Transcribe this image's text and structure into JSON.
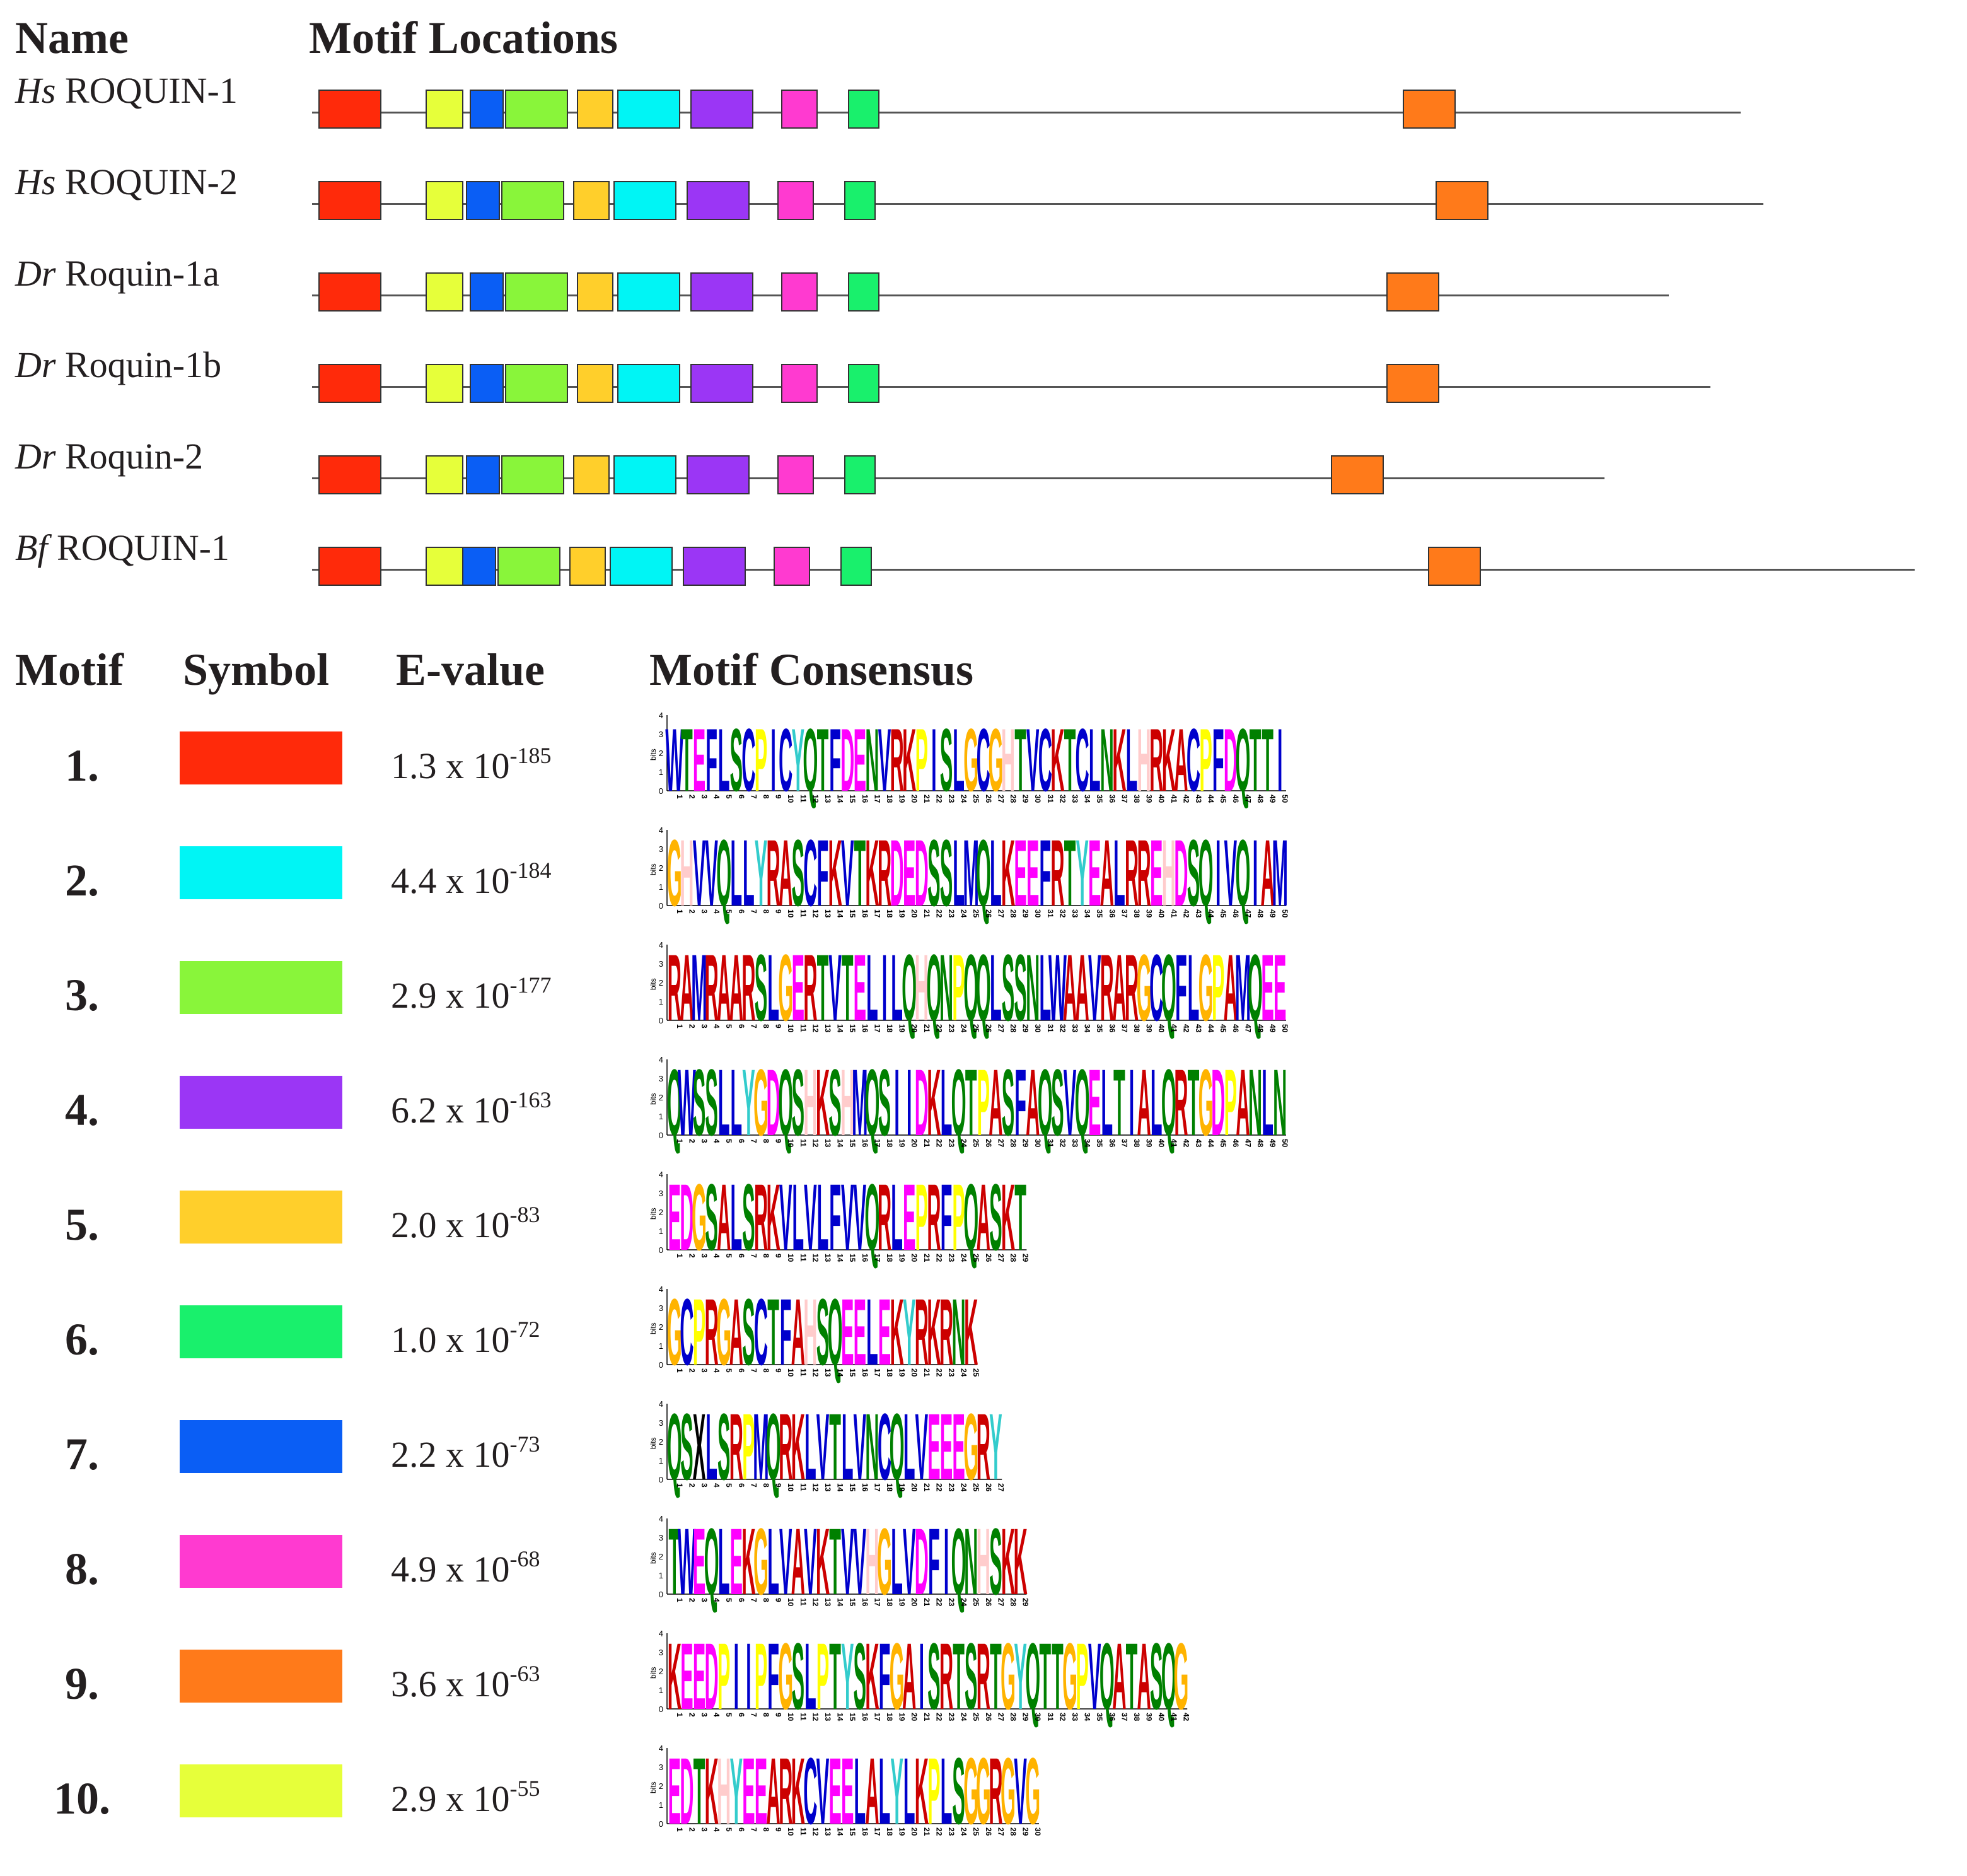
{
  "headers": {
    "name": "Name",
    "motif_locations": "Motif Locations",
    "motif": "Motif",
    "symbol": "Symbol",
    "evalue": "E-value",
    "consensus": "Motif Consensus"
  },
  "proteins": [
    {
      "species": "Hs",
      "gene": "ROQUIN-1",
      "length": 1133,
      "motifs": [
        [
          1,
          0
        ],
        [
          10,
          85
        ],
        [
          7,
          120
        ],
        [
          3,
          148
        ],
        [
          5,
          205
        ],
        [
          2,
          237
        ],
        [
          4,
          295
        ],
        [
          8,
          367
        ],
        [
          6,
          420
        ],
        [
          9,
          860
        ]
      ]
    },
    {
      "species": "Hs",
      "gene": "ROQUIN-2",
      "length": 1151,
      "motifs": [
        [
          1,
          0
        ],
        [
          10,
          85
        ],
        [
          7,
          117
        ],
        [
          3,
          145
        ],
        [
          5,
          202
        ],
        [
          2,
          234
        ],
        [
          4,
          292
        ],
        [
          8,
          364
        ],
        [
          6,
          417
        ],
        [
          9,
          886
        ]
      ]
    },
    {
      "species": "Dr",
      "gene": "Roquin-1a",
      "length": 1076,
      "motifs": [
        [
          1,
          0
        ],
        [
          10,
          85
        ],
        [
          7,
          120
        ],
        [
          3,
          148
        ],
        [
          5,
          205
        ],
        [
          2,
          237
        ],
        [
          4,
          295
        ],
        [
          8,
          367
        ],
        [
          6,
          420
        ],
        [
          9,
          847
        ]
      ]
    },
    {
      "species": "Dr",
      "gene": "Roquin-1b",
      "length": 1109,
      "motifs": [
        [
          1,
          0
        ],
        [
          10,
          85
        ],
        [
          7,
          120
        ],
        [
          3,
          148
        ],
        [
          5,
          205
        ],
        [
          2,
          237
        ],
        [
          4,
          295
        ],
        [
          8,
          367
        ],
        [
          6,
          420
        ],
        [
          9,
          847
        ]
      ]
    },
    {
      "species": "Dr",
      "gene": "Roquin-2",
      "length": 1025,
      "motifs": [
        [
          1,
          0
        ],
        [
          10,
          85
        ],
        [
          7,
          117
        ],
        [
          3,
          145
        ],
        [
          5,
          202
        ],
        [
          2,
          234
        ],
        [
          4,
          292
        ],
        [
          8,
          364
        ],
        [
          6,
          417
        ],
        [
          9,
          803
        ]
      ]
    },
    {
      "species": "Bf",
      "gene": "ROQUIN-1",
      "length": 1271,
      "motifs": [
        [
          1,
          0
        ],
        [
          10,
          85
        ],
        [
          7,
          114
        ],
        [
          3,
          142
        ],
        [
          5,
          199
        ],
        [
          2,
          231
        ],
        [
          4,
          289
        ],
        [
          8,
          361
        ],
        [
          6,
          414
        ],
        [
          9,
          880
        ]
      ]
    }
  ],
  "motifs": [
    {
      "label": "1.",
      "color": "#ff2a0a",
      "evalue_base": "1.3 x 10",
      "evalue_exp": "-185",
      "consensus": "WTEFLSCPICYQTFDENVRKPISLGCGHTVCKTCLNKLHRKACPFDQTTI",
      "height": 3.4
    },
    {
      "label": "2.",
      "color": "#00f5f5",
      "evalue_base": "4.4 x 10",
      "evalue_exp": "-184",
      "consensus": "GHVVQLLYRASCFKVTKRDEDSSLMQLKEEFRTYEALRREHDSQIVQIAM",
      "height": 3.6
    },
    {
      "label": "3.",
      "color": "#89f53a",
      "evalue_base": "2.9 x 10",
      "evalue_exp": "-177",
      "consensus": "RAMRAARSLGERTVTELILQHQNPQQLSSNLWAAVRARGCQFLGPAMQEE",
      "height": 3.6
    },
    {
      "label": "4.",
      "color": "#9b36f5",
      "evalue_base": "6.2 x 10",
      "evalue_exp": "-163",
      "consensus": "QWSSLLYGDQSHKSHMQSIIDKLQTPASFAQSVQELTIALQRTGDPANLN",
      "height": 3.6
    },
    {
      "label": "5.",
      "color": "#ffcf2b",
      "evalue_base": "2.0 x 10",
      "evalue_exp": "-83",
      "consensus": "EDGSALSRKVLVLFVVQRLEPRFPQASKT",
      "height": 3.6
    },
    {
      "label": "6.",
      "color": "#19f06c",
      "evalue_base": "1.0 x 10",
      "evalue_exp": "-72",
      "consensus": "GCPRGASCTFAHSQEELEKYRKRNK",
      "height": 3.6
    },
    {
      "label": "7.",
      "color": "#0a5ef5",
      "evalue_base": "2.2 x 10",
      "evalue_exp": "-73",
      "consensus": "QSXLSRPMQRKLVTLVNCQLVEEEGRY",
      "height": 3.6
    },
    {
      "label": "8.",
      "color": "#ff3ad0",
      "evalue_base": "4.9 x 10",
      "evalue_exp": "-68",
      "consensus": "TWEQLEKGLVAVKTVVHGLVDFIQNHSKK",
      "height": 3.6
    },
    {
      "label": "9.",
      "color": "#ff7a1a",
      "evalue_base": "3.6 x 10",
      "evalue_exp": "-63",
      "consensus": "KEEDPIIPFGSLPTYSKFGAISRTSRTGYQTTGPVQATASQG",
      "height": 3.6
    },
    {
      "label": "10.",
      "color": "#e6ff3a",
      "evalue_base": "2.9 x 10",
      "evalue_exp": "-55",
      "consensus": "EDTKHYEEARKCVEELALYLKPLSGGRGVG",
      "height": 3.6
    }
  ],
  "logo_axis": {
    "ylabel": "bits",
    "ticks": [
      "4",
      "3",
      "2",
      "1",
      "0"
    ]
  },
  "aa_colors": {
    "A": "#cc0000",
    "C": "#0000cc",
    "D": "#ff00ff",
    "E": "#ff00ff",
    "F": "#0000cc",
    "G": "#ffb300",
    "H": "#ffcccc",
    "I": "#0000cc",
    "K": "#cc0000",
    "L": "#0000cc",
    "M": "#0000cc",
    "N": "#008000",
    "P": "#ffff00",
    "Q": "#008000",
    "R": "#cc0000",
    "S": "#008000",
    "T": "#008000",
    "V": "#0000cc",
    "W": "#0000cc",
    "Y": "#33cccc",
    "X": "#000000"
  }
}
